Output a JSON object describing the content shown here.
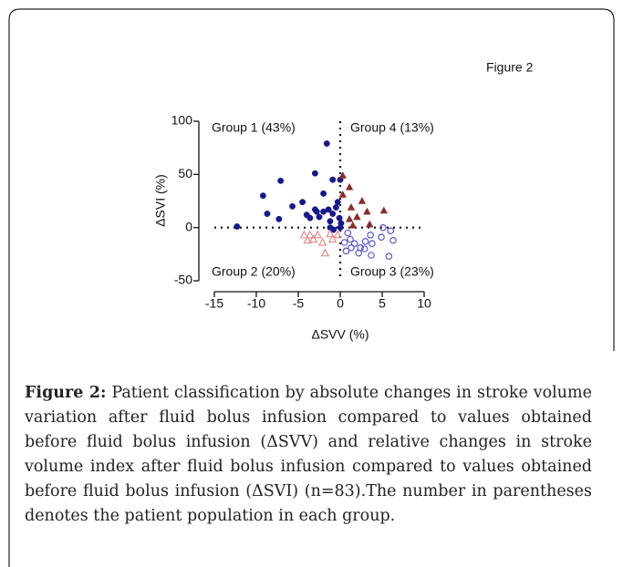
{
  "figure_label": "Figure 2",
  "chart_data": {
    "type": "scatter",
    "xlabel": "ΔSVV (%)",
    "ylabel": "ΔSVI (%)",
    "xlim": [
      -15,
      10
    ],
    "xticks": [
      -15,
      -10,
      -5,
      0,
      5,
      10
    ],
    "ylim": [
      -50,
      100
    ],
    "yticks": [
      -50,
      0,
      50,
      100
    ],
    "series": [
      {
        "name": "Group 1 (43%)",
        "color": "#16168f",
        "marker": "circle",
        "filled": true,
        "x": [
          -12.3,
          -9.2,
          -8.7,
          -7.3,
          -7.1,
          -5.7,
          -4.5,
          -3.0,
          -1.6,
          -0.9,
          0,
          -2.0,
          -2.8,
          -3.6,
          -2.5,
          -2.0,
          -1.4,
          -1.2,
          -0.9,
          -0.5,
          -0.3,
          -0.1,
          0.1,
          -1.2,
          -0.8,
          0,
          -3.0,
          -4.0
        ],
        "values": [
          1,
          30,
          13,
          8,
          44,
          20,
          24,
          51,
          79,
          45,
          45,
          32,
          15,
          9,
          10,
          15,
          17,
          6,
          13,
          19,
          24,
          9,
          4,
          0,
          -2,
          0,
          17,
          12
        ]
      },
      {
        "name": "Group 4 (13%)",
        "color": "#8a2b2b",
        "marker": "triangle",
        "filled": true,
        "x": [
          0.3,
          1.1,
          0.3,
          1.3,
          2.6,
          2.0,
          3.2,
          1.1,
          3.5,
          5.2,
          1.5
        ],
        "values": [
          49,
          38,
          31,
          19,
          25,
          10,
          15,
          8,
          3,
          16,
          2
        ]
      },
      {
        "name": "Group 2 (20%)",
        "color": "#e88a8a",
        "marker": "triangle",
        "filled": false,
        "x": [
          -4.3,
          -3.9,
          -3.2,
          -2.1,
          -1.2,
          -0.9,
          -0.3,
          -1.8,
          -3.6,
          -2.7
        ],
        "values": [
          -7,
          -12,
          -11,
          -14,
          -6,
          -11,
          -7,
          -24,
          -7,
          -7
        ]
      },
      {
        "name": "Group 3 (23%)",
        "color": "#5858cf",
        "marker": "circle",
        "filled": false,
        "x": [
          0.9,
          1.2,
          1.7,
          2.4,
          3.0,
          3.8,
          3.6,
          4.9,
          6.0,
          6.3,
          5.8,
          3.7,
          2.2,
          0.7,
          1.3,
          2.9,
          5.1,
          0.5
        ],
        "values": [
          -5,
          -11,
          -15,
          -19,
          -13,
          -15,
          -7,
          -9,
          -3,
          -12,
          -27,
          -26,
          -24,
          -22,
          -19,
          -20,
          0,
          -14
        ]
      }
    ]
  },
  "caption": {
    "label": "Figure 2:",
    "text": " Patient classification by absolute changes in stroke volume variation after fluid bolus infusion compared to values obtained before fluid bolus infusion (ΔSVV) and relative changes in stroke volume index after fluid bolus infusion compared to values obtained before fluid bolus infusion (ΔSVI) (n=83).The number in parentheses denotes the patient population in each group."
  }
}
